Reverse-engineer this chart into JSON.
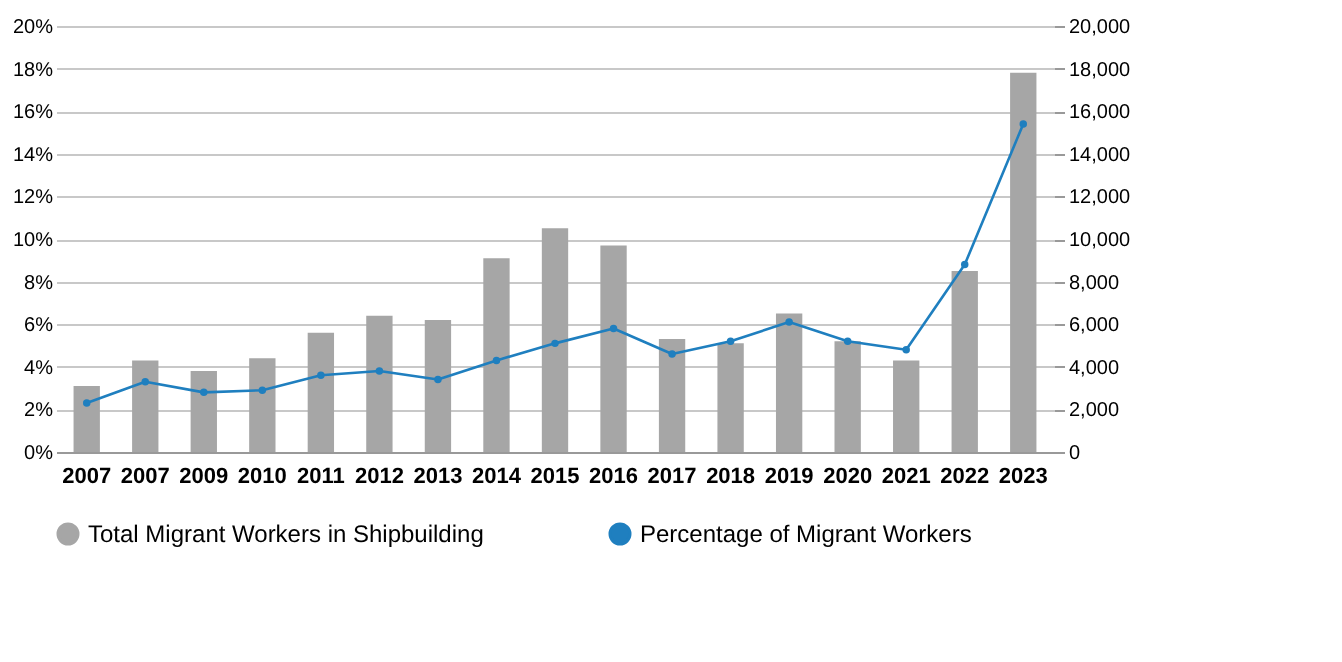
{
  "chart_data": {
    "type": "bar",
    "categories": [
      "2007",
      "2007",
      "2009",
      "2010",
      "2011",
      "2012",
      "2013",
      "2014",
      "2015",
      "2016",
      "2017",
      "2018",
      "2019",
      "2020",
      "2021",
      "2022",
      "2023"
    ],
    "series": [
      {
        "name": "Total Migrant Workers in Shipbuilding",
        "axis": "y2",
        "color": "#a6a6a6",
        "values": [
          3100,
          4300,
          3800,
          4400,
          5600,
          6400,
          6200,
          9100,
          10500,
          9700,
          5300,
          5100,
          6500,
          5200,
          4300,
          8500,
          17800
        ]
      },
      {
        "name": "Percentage of Migrant Workers",
        "type": "line",
        "axis": "y",
        "color": "#1f7fbf",
        "marker": "circle",
        "values": [
          2.3,
          3.3,
          2.8,
          2.9,
          3.6,
          3.8,
          3.4,
          4.3,
          5.1,
          5.8,
          4.6,
          5.2,
          6.1,
          5.2,
          4.8,
          8.8,
          15.4
        ]
      }
    ],
    "ylim": [
      0,
      20
    ],
    "yticks": [
      {
        "value": 0,
        "label": "0%"
      },
      {
        "value": 2,
        "label": "2%"
      },
      {
        "value": 4,
        "label": "4%"
      },
      {
        "value": 6,
        "label": "6%"
      },
      {
        "value": 8,
        "label": "8%"
      },
      {
        "value": 10,
        "label": "10%"
      },
      {
        "value": 12,
        "label": "12%"
      },
      {
        "value": 14,
        "label": "14%"
      },
      {
        "value": 16,
        "label": "16%"
      },
      {
        "value": 18,
        "label": "18%"
      },
      {
        "value": 20,
        "label": "20%"
      }
    ],
    "y2lim": [
      0,
      20000
    ],
    "y2ticks": [
      0,
      {
        "value": 2000,
        "label": "2,000"
      },
      {
        "value": 4000,
        "label": "4,000"
      },
      {
        "value": 6000,
        "label": "6,000"
      },
      {
        "value": 8000,
        "label": "8,000"
      },
      {
        "value": 10000,
        "label": "10,000"
      },
      {
        "value": 12000,
        "label": "12,000"
      },
      {
        "value": 14000,
        "label": "14,000"
      },
      {
        "value": 16000,
        "label": "16,000"
      },
      {
        "value": 18000,
        "label": "18,000"
      },
      {
        "value": 20000,
        "label": "20,000"
      }
    ],
    "grid": "y",
    "legend": "bottom"
  }
}
